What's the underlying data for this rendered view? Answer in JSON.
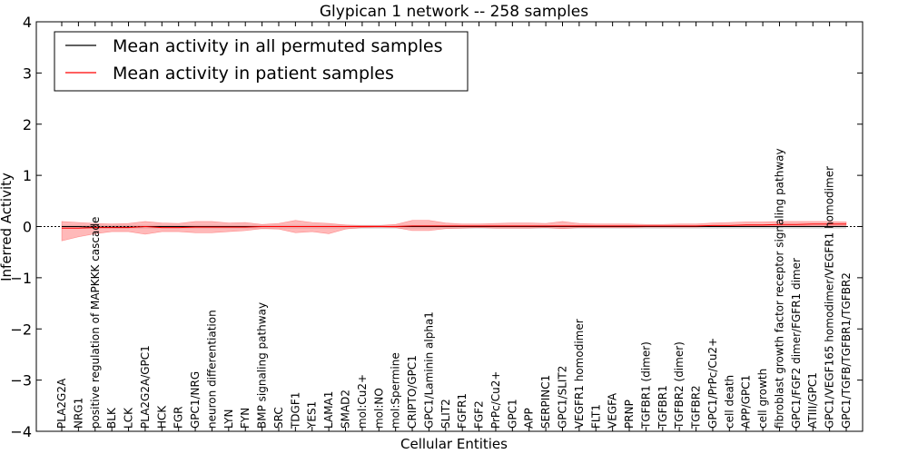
{
  "chart_data": {
    "type": "line",
    "title": "Glypican 1 network -- 258 samples",
    "xlabel": "Cellular Entities",
    "ylabel": "Inferred Activity",
    "ylim": [
      -4,
      4
    ],
    "yticks": [
      4,
      3,
      2,
      1,
      0,
      -1,
      -2,
      -3,
      -4
    ],
    "ytick_labels": [
      "4",
      "3",
      "2",
      "1",
      "0",
      "−1",
      "−2",
      "−3",
      "−4"
    ],
    "grid": false,
    "legend_position": "top-left",
    "categories": [
      "PLA2G2A",
      "NRG1",
      "positive regulation of MAPKKK cascade",
      "BLK",
      "LCK",
      "PLA2G2A/GPC1",
      "HCK",
      "FGR",
      "GPC1/NRG",
      "neuron differentiation",
      "LYN",
      "FYN",
      "BMP signaling pathway",
      "SRC",
      "TDGF1",
      "YES1",
      "LAMA1",
      "SMAD2",
      "mol:Cu2+",
      "mol:NO",
      "mol:Spermine",
      "CRIPTO/GPC1",
      "GPC1/Laminin alpha1",
      "SLIT2",
      "FGFR1",
      "FGF2",
      "PrPc/Cu2+",
      "GPC1",
      "APP",
      "SERPINC1",
      "GPC1/SLIT2",
      "VEGFR1 homodimer",
      "FLT1",
      "VEGFA",
      "PRNP",
      "TGFBR1 (dimer)",
      "TGFBR1",
      "TGFBR2 (dimer)",
      "TGFBR2",
      "GPC1/PrPc/Cu2+",
      "cell death",
      "APP/GPC1",
      "cell growth",
      "fibroblast growth factor receptor signaling pathway",
      "GPC1/FGF2 dimer/FGFR1 dimer",
      "ATIII/GPC1",
      "GPC1/VEGF165 homodimer/VEGFR1 homodimer",
      "GPC1/TGFB/TGFBR1/TGFBR2"
    ],
    "series": [
      {
        "name": "Mean activity in all permuted samples",
        "color": "#000000",
        "values": [
          0.0,
          0.0,
          -0.01,
          -0.01,
          -0.01,
          0.0,
          0.0,
          0.0,
          0.0,
          0.0,
          0.0,
          0.0,
          0.0,
          0.0,
          0.0,
          0.0,
          0.0,
          0.0,
          0.0,
          0.0,
          0.0,
          0.0,
          0.0,
          0.0,
          0.0,
          0.0,
          0.0,
          0.0,
          0.0,
          0.0,
          0.0,
          0.0,
          0.0,
          0.0,
          0.0,
          0.0,
          0.0,
          0.0,
          0.0,
          0.0,
          0.0,
          0.0,
          0.0,
          0.0,
          0.0,
          0.0,
          0.0,
          0.0
        ]
      },
      {
        "name": "Mean activity in patient samples",
        "color": "#ff0000",
        "fill_color": "#ff8080",
        "values": [
          -0.03,
          -0.03,
          -0.02,
          -0.02,
          -0.02,
          0.0,
          -0.02,
          -0.02,
          -0.01,
          -0.01,
          -0.01,
          -0.01,
          0.0,
          0.0,
          0.0,
          0.0,
          0.0,
          0.0,
          0.0,
          0.0,
          0.0,
          0.01,
          0.01,
          0.01,
          0.01,
          0.01,
          0.01,
          0.01,
          0.01,
          0.01,
          0.01,
          0.01,
          0.01,
          0.01,
          0.01,
          0.01,
          0.01,
          0.01,
          0.01,
          0.02,
          0.02,
          0.03,
          0.03,
          0.04,
          0.04,
          0.05,
          0.05,
          0.05
        ],
        "upper": [
          0.1,
          0.08,
          0.06,
          0.05,
          0.06,
          0.1,
          0.07,
          0.06,
          0.1,
          0.1,
          0.07,
          0.08,
          0.04,
          0.06,
          0.12,
          0.08,
          0.06,
          0.03,
          0.02,
          0.02,
          0.04,
          0.12,
          0.12,
          0.07,
          0.05,
          0.05,
          0.06,
          0.07,
          0.07,
          0.06,
          0.1,
          0.06,
          0.05,
          0.05,
          0.05,
          0.04,
          0.04,
          0.05,
          0.05,
          0.07,
          0.08,
          0.09,
          0.09,
          0.1,
          0.1,
          0.1,
          0.1,
          0.09
        ],
        "lower": [
          -0.28,
          -0.2,
          -0.14,
          -0.1,
          -0.1,
          -0.15,
          -0.1,
          -0.1,
          -0.12,
          -0.12,
          -0.1,
          -0.08,
          -0.04,
          -0.05,
          -0.12,
          -0.1,
          -0.14,
          -0.05,
          -0.02,
          -0.01,
          -0.02,
          -0.08,
          -0.08,
          -0.04,
          -0.03,
          -0.02,
          -0.03,
          -0.03,
          -0.03,
          -0.02,
          -0.04,
          -0.02,
          -0.02,
          -0.02,
          -0.02,
          -0.01,
          -0.01,
          -0.01,
          -0.01,
          0.0,
          0.0,
          0.01,
          0.01,
          0.01,
          0.01,
          0.02,
          0.02,
          0.02
        ]
      }
    ],
    "permuted_band": {
      "color": "#c0c0c0",
      "upper": [
        0.03,
        0.03,
        0.03,
        0.03,
        0.03,
        0.03,
        0.03,
        0.03,
        0.03,
        0.03,
        0.03,
        0.03,
        0.03,
        0.03,
        0.03,
        0.03,
        0.03,
        0.03,
        0.03,
        0.03,
        0.03,
        0.03,
        0.03,
        0.03,
        0.03,
        0.03,
        0.03,
        0.03,
        0.03,
        0.03,
        0.03,
        0.03,
        0.03,
        0.03,
        0.03,
        0.03,
        0.03,
        0.03,
        0.03,
        0.03,
        0.03,
        0.03,
        0.03,
        0.03,
        0.03,
        0.03,
        0.03,
        0.03
      ],
      "lower": [
        -0.04,
        -0.04,
        -0.04,
        -0.04,
        -0.04,
        -0.04,
        -0.04,
        -0.04,
        -0.04,
        -0.04,
        -0.04,
        -0.04,
        -0.04,
        -0.04,
        -0.04,
        -0.04,
        -0.04,
        -0.04,
        -0.04,
        -0.04,
        -0.04,
        -0.04,
        -0.04,
        -0.04,
        -0.04,
        -0.04,
        -0.04,
        -0.04,
        -0.04,
        -0.04,
        -0.04,
        -0.04,
        -0.04,
        -0.04,
        -0.04,
        -0.04,
        -0.04,
        -0.04,
        -0.04,
        -0.04,
        -0.04,
        -0.04,
        -0.04,
        -0.04,
        -0.04,
        -0.04,
        -0.04,
        -0.04
      ]
    }
  }
}
